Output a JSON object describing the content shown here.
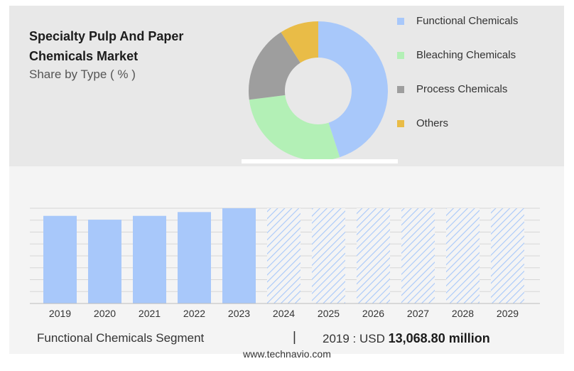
{
  "header": {
    "title": "Specialty Pulp And Paper Chemicals Market",
    "subtitle": "Share by Type ( % )"
  },
  "chart_data": [
    {
      "type": "pie",
      "labels": [
        "Functional Chemicals",
        "Bleaching Chemicals",
        "Process Chemicals",
        "Others"
      ],
      "values": [
        45,
        28,
        18,
        9
      ],
      "colors": [
        "#a8c8fa",
        "#b3f0b6",
        "#9e9e9e",
        "#e9bc47"
      ],
      "legend": "right"
    },
    {
      "type": "bar",
      "categories": [
        "2019",
        "2020",
        "2021",
        "2022",
        "2023",
        "2024",
        "2025",
        "2026",
        "2027",
        "2028",
        "2029"
      ],
      "values": [
        92,
        88,
        92,
        96,
        100,
        100,
        100,
        100,
        100,
        100,
        100
      ],
      "forecast_from": "2024",
      "ylim": [
        0,
        100
      ],
      "grid": true,
      "color": "#a8c8fa",
      "forecast_color": "#a8c8fa"
    }
  ],
  "footer": {
    "segment": "Functional Chemicals Segment",
    "separator": "|",
    "year_label": "2019 : USD",
    "value": "13,068.80 million",
    "source": "www.technavio.com"
  }
}
